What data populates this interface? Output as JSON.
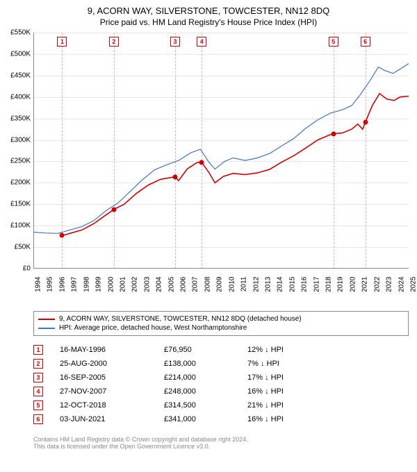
{
  "title": "9, ACORN WAY, SILVERSTONE, TOWCESTER, NN12 8DQ",
  "subtitle": "Price paid vs. HM Land Registry's House Price Index (HPI)",
  "chart": {
    "type": "line",
    "x_range": [
      1994,
      2025
    ],
    "y_range": [
      0,
      550000
    ],
    "ytick_step": 50000,
    "ytick_labels": [
      "£0",
      "£50K",
      "£100K",
      "£150K",
      "£200K",
      "£250K",
      "£300K",
      "£350K",
      "£400K",
      "£450K",
      "£500K",
      "£550K"
    ],
    "xtick_years": [
      1994,
      1995,
      1996,
      1997,
      1998,
      1999,
      2000,
      2001,
      2002,
      2003,
      2004,
      2005,
      2006,
      2007,
      2008,
      2009,
      2010,
      2011,
      2012,
      2013,
      2014,
      2015,
      2016,
      2017,
      2018,
      2019,
      2020,
      2021,
      2022,
      2023,
      2024,
      2025
    ],
    "background_color": "#ffffff",
    "grid_color": "#e6e6e6",
    "marker_line_color": "#e0b0b0",
    "series": [
      {
        "name": "property",
        "color": "#cc0000",
        "width": 1.6,
        "points": [
          [
            1996.4,
            76950
          ],
          [
            1997,
            82000
          ],
          [
            1998,
            90000
          ],
          [
            1999,
            105000
          ],
          [
            2000,
            125000
          ],
          [
            2000.65,
            138000
          ],
          [
            2001.5,
            150000
          ],
          [
            2002.5,
            175000
          ],
          [
            2003.5,
            195000
          ],
          [
            2004.5,
            208000
          ],
          [
            2005.7,
            214000
          ],
          [
            2006,
            205000
          ],
          [
            2006.7,
            232000
          ],
          [
            2007.5,
            247000
          ],
          [
            2007.9,
            248000
          ],
          [
            2008.5,
            224000
          ],
          [
            2009,
            200000
          ],
          [
            2009.7,
            215000
          ],
          [
            2010.5,
            222000
          ],
          [
            2011.5,
            219000
          ],
          [
            2012.5,
            223000
          ],
          [
            2013.5,
            231000
          ],
          [
            2014.5,
            248000
          ],
          [
            2015.5,
            263000
          ],
          [
            2016.5,
            281000
          ],
          [
            2017.5,
            300000
          ],
          [
            2018.5,
            312000
          ],
          [
            2018.8,
            314500
          ],
          [
            2019.5,
            316000
          ],
          [
            2020.3,
            325000
          ],
          [
            2020.8,
            337000
          ],
          [
            2021.2,
            325000
          ],
          [
            2021.42,
            341000
          ],
          [
            2022,
            380000
          ],
          [
            2022.6,
            408000
          ],
          [
            2023.2,
            395000
          ],
          [
            2023.8,
            392000
          ],
          [
            2024.3,
            400000
          ],
          [
            2025,
            402000
          ]
        ],
        "sale_points": [
          [
            1996.38,
            76950
          ],
          [
            2000.65,
            138000
          ],
          [
            2005.71,
            214000
          ],
          [
            2007.91,
            248000
          ],
          [
            2018.78,
            314500
          ],
          [
            2021.42,
            341000
          ]
        ]
      },
      {
        "name": "hpi",
        "color": "#4472c4",
        "width": 1.2,
        "points": [
          [
            1994,
            85000
          ],
          [
            1995,
            83000
          ],
          [
            1996,
            82000
          ],
          [
            1997,
            90000
          ],
          [
            1998,
            98000
          ],
          [
            1999,
            112000
          ],
          [
            2000,
            135000
          ],
          [
            2001,
            153000
          ],
          [
            2002,
            180000
          ],
          [
            2003,
            207000
          ],
          [
            2004,
            230000
          ],
          [
            2005,
            242000
          ],
          [
            2006,
            252000
          ],
          [
            2007,
            270000
          ],
          [
            2007.8,
            278000
          ],
          [
            2008.5,
            248000
          ],
          [
            2009,
            232000
          ],
          [
            2009.8,
            250000
          ],
          [
            2010.5,
            258000
          ],
          [
            2011.5,
            252000
          ],
          [
            2012.5,
            258000
          ],
          [
            2013.5,
            268000
          ],
          [
            2014.5,
            286000
          ],
          [
            2015.5,
            303000
          ],
          [
            2016.5,
            327000
          ],
          [
            2017.5,
            347000
          ],
          [
            2018.5,
            362000
          ],
          [
            2019.5,
            370000
          ],
          [
            2020.3,
            380000
          ],
          [
            2021,
            405000
          ],
          [
            2021.8,
            438000
          ],
          [
            2022.5,
            470000
          ],
          [
            2023,
            462000
          ],
          [
            2023.7,
            455000
          ],
          [
            2024.3,
            465000
          ],
          [
            2025,
            478000
          ]
        ]
      }
    ]
  },
  "legend": {
    "items": [
      {
        "color": "#cc0000",
        "label": "9, ACORN WAY, SILVERSTONE, TOWCESTER, NN12 8DQ (detached house)"
      },
      {
        "color": "#4472c4",
        "label": "HPI: Average price, detached house, West Northamptonshire"
      }
    ]
  },
  "table": {
    "rows": [
      {
        "n": "1",
        "date": "16-MAY-1996",
        "price": "£76,950",
        "diff": "12% ↓ HPI"
      },
      {
        "n": "2",
        "date": "25-AUG-2000",
        "price": "£138,000",
        "diff": "7% ↓ HPI"
      },
      {
        "n": "3",
        "date": "16-SEP-2005",
        "price": "£214,000",
        "diff": "17% ↓ HPI"
      },
      {
        "n": "4",
        "date": "27-NOV-2007",
        "price": "£248,000",
        "diff": "16% ↓ HPI"
      },
      {
        "n": "5",
        "date": "12-OCT-2018",
        "price": "£314,500",
        "diff": "21% ↓ HPI"
      },
      {
        "n": "6",
        "date": "03-JUN-2021",
        "price": "£341,000",
        "diff": "16% ↓ HPI"
      }
    ]
  },
  "footer": {
    "line1": "Contains HM Land Registry data © Crown copyright and database right 2024.",
    "line2": "This data is licensed under the Open Government Licence v3.0."
  }
}
